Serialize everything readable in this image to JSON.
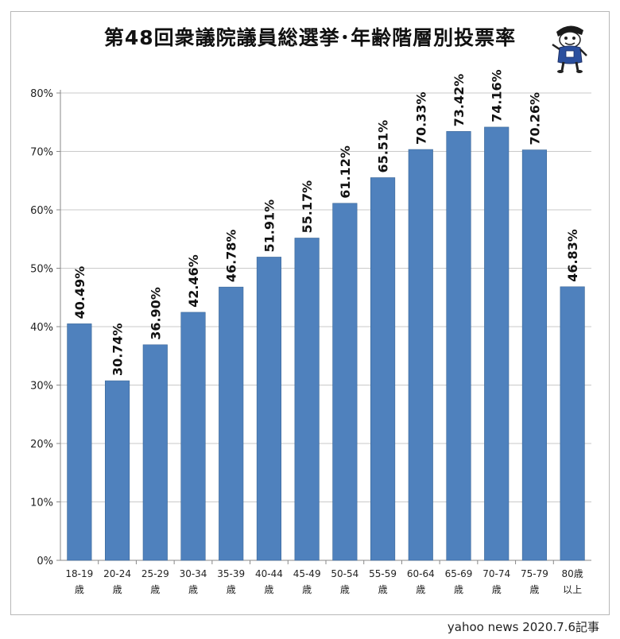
{
  "title": "第48回衆議院議員総選挙･年齢階層別投票率",
  "credit": "yahoo news 2020.7.6記事",
  "mascot_icon": "cartoon-mascot-icon",
  "colors": {
    "bar": "#4f81bd",
    "bar_edge": "#3b6797",
    "grid": "#c9c9c9",
    "axis": "#888888"
  },
  "chart_data": {
    "type": "bar",
    "title": "第48回衆議院議員総選挙･年齢階層別投票率",
    "categories": [
      [
        "18-19",
        "歳"
      ],
      [
        "20-24",
        "歳"
      ],
      [
        "25-29",
        "歳"
      ],
      [
        "30-34",
        "歳"
      ],
      [
        "35-39",
        "歳"
      ],
      [
        "40-44",
        "歳"
      ],
      [
        "45-49",
        "歳"
      ],
      [
        "50-54",
        "歳"
      ],
      [
        "55-59",
        "歳"
      ],
      [
        "60-64",
        "歳"
      ],
      [
        "65-69",
        "歳"
      ],
      [
        "70-74",
        "歳"
      ],
      [
        "75-79",
        "歳"
      ],
      [
        "80歳",
        "以上"
      ]
    ],
    "values": [
      40.49,
      30.74,
      36.9,
      42.46,
      46.78,
      51.91,
      55.17,
      61.12,
      65.51,
      70.33,
      73.42,
      74.16,
      70.26,
      46.83
    ],
    "data_labels": [
      "40.49%",
      "30.74%",
      "36.90%",
      "42.46%",
      "46.78%",
      "51.91%",
      "55.17%",
      "61.12%",
      "65.51%",
      "70.33%",
      "73.42%",
      "74.16%",
      "70.26%",
      "46.83%"
    ],
    "y_ticks": [
      "0%",
      "10%",
      "20%",
      "30%",
      "40%",
      "50%",
      "60%",
      "70%",
      "80%"
    ],
    "ylim": [
      0,
      80
    ],
    "grid": true,
    "legend": "none",
    "xlabel": "",
    "ylabel": ""
  }
}
